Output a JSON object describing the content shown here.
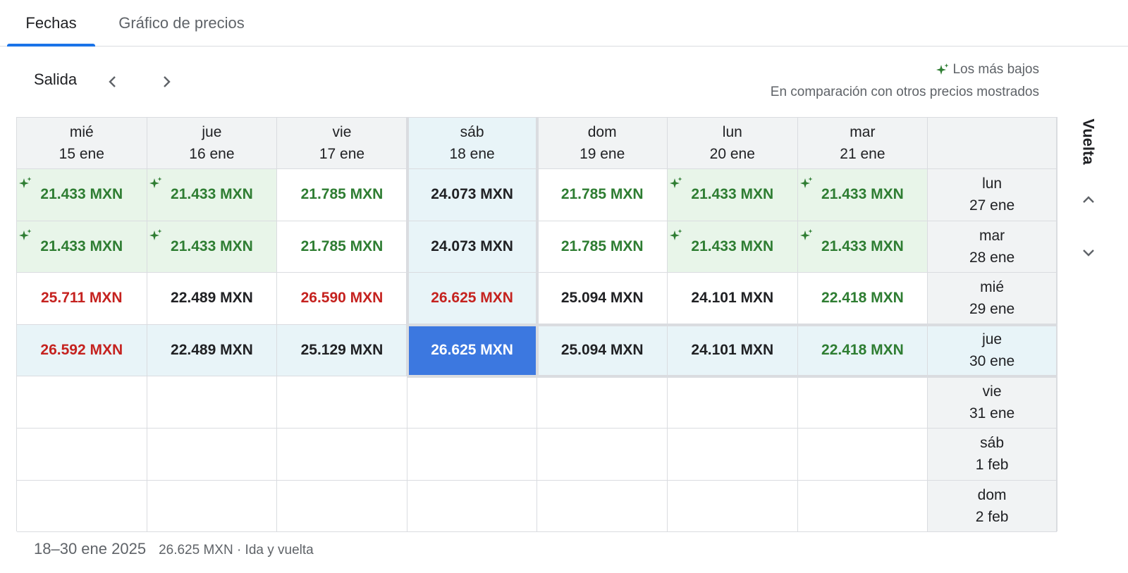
{
  "tabs": [
    {
      "label": "Fechas",
      "active": true
    },
    {
      "label": "Gráfico de precios",
      "active": false
    }
  ],
  "departure_label": "Salida",
  "return_label": "Vuelta",
  "legend": {
    "title": "Los más bajos",
    "subtitle": "En comparación con otros precios mostrados",
    "icon": "sparkle-icon",
    "color": "#2e7d32"
  },
  "columns": [
    {
      "day": "mié",
      "date": "15 ene"
    },
    {
      "day": "jue",
      "date": "16 ene"
    },
    {
      "day": "vie",
      "date": "17 ene"
    },
    {
      "day": "sáb",
      "date": "18 ene",
      "selected": true
    },
    {
      "day": "dom",
      "date": "19 ene"
    },
    {
      "day": "lun",
      "date": "20 ene"
    },
    {
      "day": "mar",
      "date": "21 ene"
    }
  ],
  "rows": [
    {
      "day": "lun",
      "date": "27 ene"
    },
    {
      "day": "mar",
      "date": "28 ene"
    },
    {
      "day": "mié",
      "date": "29 ene"
    },
    {
      "day": "jue",
      "date": "30 ene",
      "selected": true
    },
    {
      "day": "vie",
      "date": "31 ene"
    },
    {
      "day": "sáb",
      "date": "1 feb"
    },
    {
      "day": "dom",
      "date": "2 feb"
    }
  ],
  "prices": [
    [
      {
        "value": "21.433 MXN",
        "tone": "green",
        "lowest": true
      },
      {
        "value": "21.433 MXN",
        "tone": "green",
        "lowest": true
      },
      {
        "value": "21.785 MXN",
        "tone": "green",
        "lowest": false
      },
      {
        "value": "24.073 MXN",
        "tone": "black",
        "lowest": false
      },
      {
        "value": "21.785 MXN",
        "tone": "green",
        "lowest": false
      },
      {
        "value": "21.433 MXN",
        "tone": "green",
        "lowest": true
      },
      {
        "value": "21.433 MXN",
        "tone": "green",
        "lowest": true
      }
    ],
    [
      {
        "value": "21.433 MXN",
        "tone": "green",
        "lowest": true
      },
      {
        "value": "21.433 MXN",
        "tone": "green",
        "lowest": true
      },
      {
        "value": "21.785 MXN",
        "tone": "green",
        "lowest": false
      },
      {
        "value": "24.073 MXN",
        "tone": "black",
        "lowest": false
      },
      {
        "value": "21.785 MXN",
        "tone": "green",
        "lowest": false
      },
      {
        "value": "21.433 MXN",
        "tone": "green",
        "lowest": true
      },
      {
        "value": "21.433 MXN",
        "tone": "green",
        "lowest": true
      }
    ],
    [
      {
        "value": "25.711 MXN",
        "tone": "red",
        "lowest": false
      },
      {
        "value": "22.489 MXN",
        "tone": "black",
        "lowest": false
      },
      {
        "value": "26.590 MXN",
        "tone": "red",
        "lowest": false
      },
      {
        "value": "26.625 MXN",
        "tone": "red",
        "lowest": false
      },
      {
        "value": "25.094 MXN",
        "tone": "black",
        "lowest": false
      },
      {
        "value": "24.101 MXN",
        "tone": "black",
        "lowest": false
      },
      {
        "value": "22.418 MXN",
        "tone": "green",
        "lowest": false
      }
    ],
    [
      {
        "value": "26.592 MXN",
        "tone": "red",
        "lowest": false
      },
      {
        "value": "22.489 MXN",
        "tone": "black",
        "lowest": false
      },
      {
        "value": "25.129 MXN",
        "tone": "black",
        "lowest": false
      },
      {
        "value": "26.625 MXN",
        "tone": "white",
        "lowest": false,
        "picked": true
      },
      {
        "value": "25.094 MXN",
        "tone": "black",
        "lowest": false
      },
      {
        "value": "24.101 MXN",
        "tone": "black",
        "lowest": false
      },
      {
        "value": "22.418 MXN",
        "tone": "green",
        "lowest": false
      }
    ],
    [
      null,
      null,
      null,
      null,
      null,
      null,
      null
    ],
    [
      null,
      null,
      null,
      null,
      null,
      null,
      null
    ],
    [
      null,
      null,
      null,
      null,
      null,
      null,
      null
    ]
  ],
  "footer": {
    "range": "18–30 ene 2025",
    "summary": "26.625 MXN · Ida y vuelta"
  },
  "colors": {
    "accent": "#1a73e8",
    "picked": "#3c78e0",
    "lowest_bg": "#e8f5e9",
    "selected_bg": "#e8f4f8",
    "green": "#2e7d32",
    "red": "#c5221f"
  }
}
